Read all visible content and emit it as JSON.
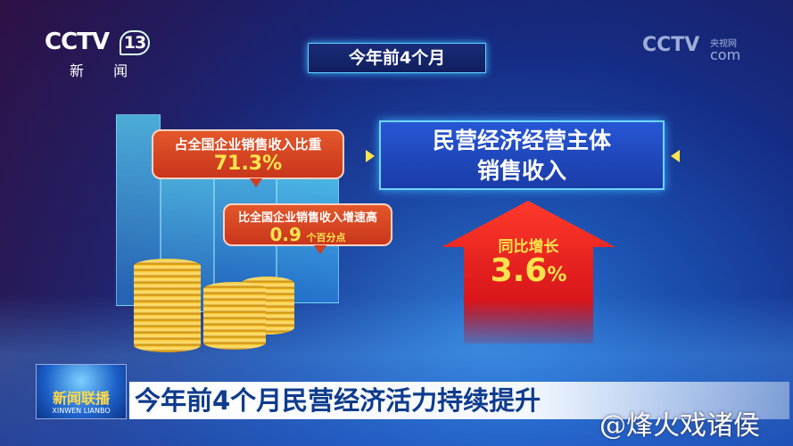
{
  "channel_logo": {
    "brand": "CCTV",
    "number": "13",
    "subtitle": "新 闻"
  },
  "web_logo": {
    "brand": "CCTV",
    "domain": "com",
    "cn": "央视网"
  },
  "top_title": "今年前4个月",
  "bubble_share": {
    "label": "占全国企业销售收入比重",
    "value": "71.3%"
  },
  "bubble_growth_gap": {
    "label": "比全国企业销售收入增速高",
    "value": "0.9",
    "unit": "个百分点"
  },
  "main_box": {
    "line1": "民营经济经营主体",
    "line2": "销售收入"
  },
  "arrow": {
    "label": "同比增长",
    "value": "3.6",
    "unit": "%"
  },
  "program_logo": {
    "name": "新闻联播",
    "pinyin": "XINWEN LIANBO"
  },
  "headline": "今年前4个月民营经济活力持续提升",
  "watermark": "@烽火戏诸侯",
  "colors": {
    "bubble": "#d5401f",
    "highlight": "#ffe54d",
    "box": "#2450c8",
    "headline_text": "#0f3b8c",
    "arrow": "#e3201c"
  }
}
